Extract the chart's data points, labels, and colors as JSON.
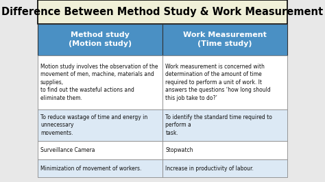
{
  "title": "Difference Between Method Study & Work Measurement",
  "title_bg": "#f5f5dc",
  "title_color": "#000000",
  "title_fontsize": 10.5,
  "header_bg": "#4a90c4",
  "header_text_color": "#ffffff",
  "col1_header": "Method study\n(Motion study)",
  "col2_header": "Work Measurement\n(Time study)",
  "rows": [
    [
      "Motion study involves the observation of the\nmovement of men, machine, materials and\nsupplies,\nto find out the wasteful actions and\neliminate them.",
      "Work measurement is concerned with\ndetermination of the amount of time\nrequired to perform a unit of work. It\nanswers the questions ‘how long should\nthis job take to do?’"
    ],
    [
      "To reduce wastage of time and energy in\nunnecessary\nmovements.",
      "To identify the standard time required to\nperform a\ntask."
    ],
    [
      "Surveillance Camera",
      "Stopwatch"
    ],
    [
      "Minimization of movement of workers.",
      "Increase in productivity of labour."
    ]
  ],
  "row_bg_odd": "#ffffff",
  "row_bg_even": "#dce9f5",
  "separator_color": "#aaaaaa",
  "figure_bg": "#e8e8e8",
  "text_fontsize": 5.5,
  "header_fontsize": 8.0
}
